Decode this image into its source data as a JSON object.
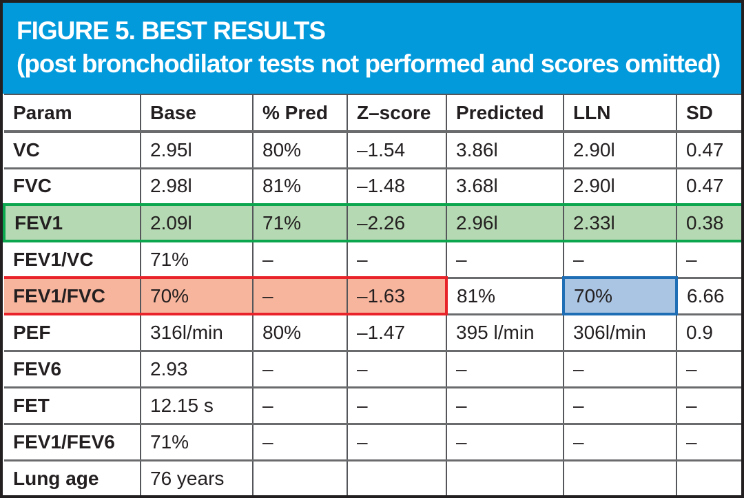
{
  "header": {
    "line1": "FIGURE 5. BEST RESULTS",
    "line2": "(post bronchodilator tests not performed and scores omitted)"
  },
  "colors": {
    "header_bg": "#039adc",
    "header_text": "#ffffff",
    "text": "#231f20",
    "grid_h": "#6a6b6d",
    "grid_v": "#54565a",
    "outer": "#231f20",
    "green_fill": "#b5d9b2",
    "green_border": "#0ca64e",
    "red_fill": "#f8b59d",
    "red_border": "#e8232a",
    "blue_fill": "#aac5e3",
    "blue_border": "#1e6eb5"
  },
  "table": {
    "columns": [
      "Param",
      "Base",
      "% Pred",
      "Z–score",
      "Predicted",
      "LLN",
      "SD"
    ],
    "rows": [
      {
        "param": "VC",
        "values": [
          "2.95l",
          "80%",
          "–1.54",
          "3.86l",
          "2.90l",
          "0.47"
        ]
      },
      {
        "param": "FVC",
        "values": [
          "2.98l",
          "81%",
          "–1.48",
          "3.68l",
          "2.90l",
          "0.47"
        ]
      },
      {
        "param": "FEV1",
        "values": [
          "2.09l",
          "71%",
          "–2.26",
          "2.96l",
          "2.33l",
          "0.38"
        ],
        "highlight": "green-row"
      },
      {
        "param": "FEV1/VC",
        "values": [
          "71%",
          "–",
          "–",
          "–",
          "–",
          "–"
        ]
      },
      {
        "param": "FEV1/FVC",
        "values": [
          "70%",
          "–",
          "–1.63",
          "81%",
          "70%",
          "6.66"
        ],
        "red_span_cols": [
          0,
          3
        ],
        "blue_cols": [
          5
        ]
      },
      {
        "param": "PEF",
        "values": [
          "316l/min",
          "80%",
          "–1.47",
          "395 l/min",
          "306l/min",
          "0.9"
        ]
      },
      {
        "param": "FEV6",
        "values": [
          "2.93",
          "–",
          "–",
          "–",
          "–",
          "–"
        ]
      },
      {
        "param": "FET",
        "values": [
          "12.15 s",
          "–",
          "–",
          "–",
          "–",
          "–"
        ]
      },
      {
        "param": "FEV1/FEV6",
        "values": [
          "71%",
          "–",
          "–",
          "–",
          "–",
          "–"
        ]
      },
      {
        "param": "Lung age",
        "values": [
          "76 years",
          "",
          "",
          "",
          "",
          ""
        ]
      }
    ]
  }
}
